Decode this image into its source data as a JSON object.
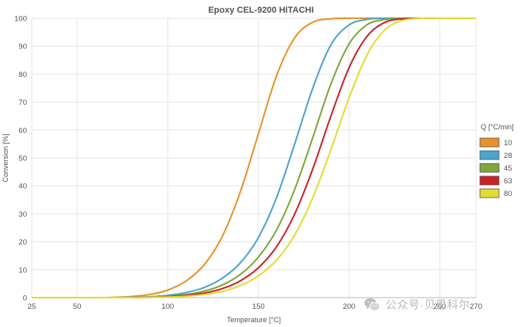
{
  "chart_data": {
    "type": "line",
    "title": "Epoxy CEL-9200 HITACHI",
    "xlabel": "Temperature [°C]",
    "ylabel": "Conversion [%]",
    "xlim": [
      25,
      270
    ],
    "ylim": [
      0,
      100
    ],
    "x_ticks": [
      "25",
      "50",
      "100",
      "150",
      "200",
      "250",
      "270"
    ],
    "x_tick_values": [
      25,
      50,
      100,
      150,
      200,
      250,
      270
    ],
    "y_ticks": [
      "0",
      "10",
      "20",
      "30",
      "40",
      "50",
      "60",
      "70",
      "80",
      "90",
      "100"
    ],
    "y_tick_values": [
      0,
      10,
      20,
      30,
      40,
      50,
      60,
      70,
      80,
      90,
      100
    ],
    "grid": true,
    "legend": {
      "title": "Q [°C/min]",
      "placement": "right"
    },
    "x": [
      25,
      60,
      70,
      80,
      90,
      100,
      110,
      120,
      130,
      140,
      150,
      160,
      170,
      180,
      190,
      200,
      210,
      220,
      230,
      240,
      250,
      260,
      270
    ],
    "series": [
      {
        "name": "10",
        "color": "#e8922b",
        "values": [
          0,
          0,
          0.1,
          0.4,
          1.1,
          2.7,
          5.9,
          11.7,
          21.8,
          37.8,
          58.6,
          79.4,
          93.0,
          98.6,
          99.8,
          100,
          100,
          100,
          100,
          100,
          100,
          100,
          100
        ]
      },
      {
        "name": "28",
        "color": "#4aa4cb",
        "values": [
          0,
          0,
          0,
          0.1,
          0.3,
          0.8,
          1.8,
          3.6,
          6.9,
          12.4,
          21.5,
          35.8,
          55.0,
          75.0,
          90.5,
          97.6,
          99.6,
          100,
          100,
          100,
          100,
          100,
          100
        ]
      },
      {
        "name": "45",
        "color": "#7ea63a",
        "values": [
          0,
          0,
          0,
          0,
          0.2,
          0.5,
          1.1,
          2.3,
          4.5,
          8.3,
          14.5,
          24.2,
          38.7,
          57.3,
          76.5,
          90.8,
          97.7,
          99.6,
          100,
          100,
          100,
          100,
          100
        ]
      },
      {
        "name": "63",
        "color": "#c9222b",
        "values": [
          0,
          0,
          0,
          0,
          0.1,
          0.3,
          0.8,
          1.6,
          3.2,
          6.0,
          10.7,
          18.2,
          29.9,
          46.1,
          65.0,
          82.3,
          93.6,
          98.6,
          99.8,
          100,
          100,
          100,
          100
        ]
      },
      {
        "name": "80",
        "color": "#e2dc33",
        "values": [
          0,
          0,
          0,
          0,
          0.1,
          0.2,
          0.5,
          1.1,
          2.2,
          4.3,
          7.8,
          13.4,
          22.4,
          35.8,
          53.0,
          71.5,
          87.0,
          96.0,
          99.3,
          100,
          100,
          100,
          100
        ]
      }
    ]
  },
  "watermark": {
    "text": "公众号·贝思科尔",
    "icon": "wechat-icon"
  }
}
